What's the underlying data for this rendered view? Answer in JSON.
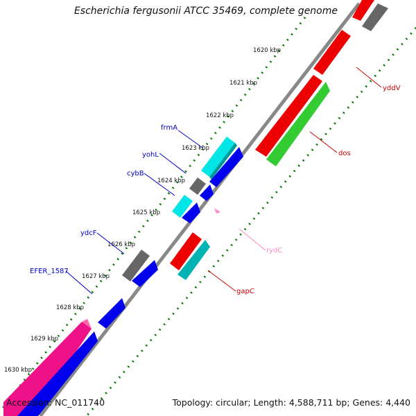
{
  "title": "Escherichia fergusonii ATCC 35469, complete genome",
  "accession": "Accession: NC_011740",
  "topology": "Topology: circular; Length: 4,588,711 bp; Genes: 4,440",
  "ticks": [
    "1620 kbp",
    "1621 kbp",
    "1622 kbp",
    "1623 kbp",
    "1624 kbp",
    "1625 kbp",
    "1626 kbp",
    "1627 kbp",
    "1628 kbp",
    "1629 kbp",
    "1630 kbp"
  ],
  "gene_labels": {
    "frmA": "frmA",
    "yohL": "yohL",
    "cybB": "cybB",
    "ydcF": "ydcF",
    "EFER_1587": "EFER_1587",
    "yddV": "yddV",
    "dos": "dos",
    "rydC": "rydC",
    "gapC": "gapC"
  },
  "colors": {
    "left_label": "#0000cc",
    "right_label": "#cc0000",
    "rna_label": "#ff88cc",
    "blue": "#0000ee",
    "cyan": "#00e5e5",
    "gray": "#666666",
    "red": "#ee0000",
    "green": "#33cc33",
    "teal": "#00b3b3",
    "magenta": "#ee1188",
    "pink": "#ff88cc",
    "backbone": "#888888",
    "ticks": "#007700"
  }
}
